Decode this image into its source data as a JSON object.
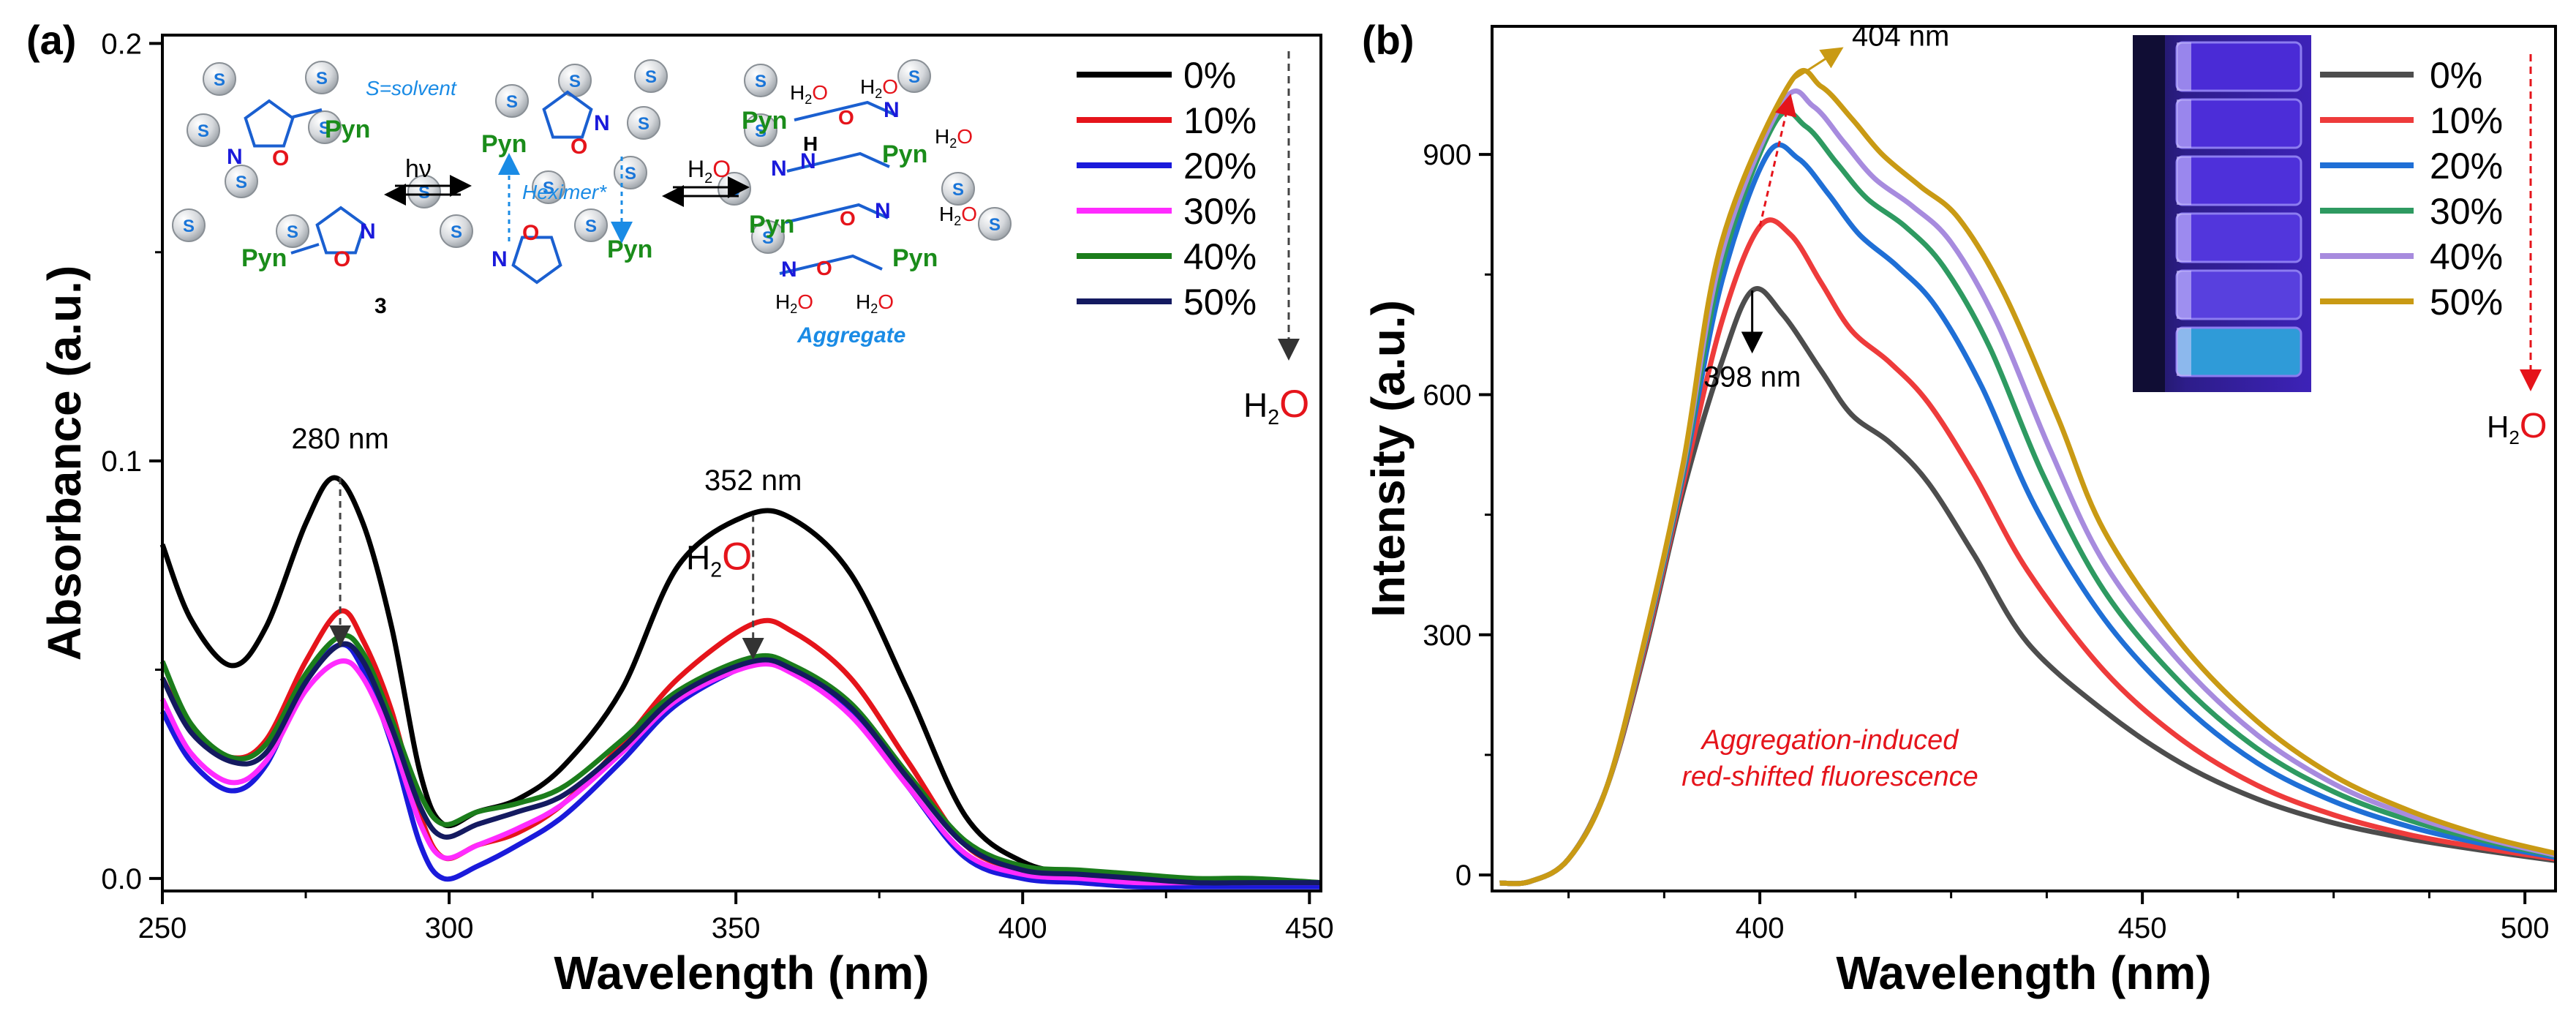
{
  "chart_data": [
    {
      "panel_label": "(a)",
      "type": "line",
      "xlabel": "Wavelength (nm)",
      "ylabel": "Absorbance (a.u.)",
      "xlim": [
        250,
        452
      ],
      "ylim": [
        -0.003,
        0.202
      ],
      "xticks": [
        250,
        300,
        350,
        400,
        450
      ],
      "yticks": [
        0.0,
        0.1,
        0.2
      ],
      "ytick_labels": [
        "0.0",
        "0.1",
        "0.2"
      ],
      "legend_title_suffix": "H2O",
      "series": [
        {
          "name": "0%",
          "color": "#000000",
          "x": [
            250,
            255,
            262,
            268,
            275,
            280,
            285,
            290,
            295,
            299,
            305,
            312,
            320,
            330,
            340,
            352,
            360,
            370,
            380,
            390,
            400,
            410,
            420,
            430,
            440,
            452
          ],
          "y": [
            0.08,
            0.062,
            0.051,
            0.06,
            0.085,
            0.096,
            0.085,
            0.06,
            0.025,
            0.013,
            0.016,
            0.019,
            0.027,
            0.045,
            0.075,
            0.087,
            0.086,
            0.073,
            0.045,
            0.015,
            0.004,
            0.001,
            0.0,
            -0.001,
            -0.001,
            -0.001
          ]
        },
        {
          "name": "10%",
          "color": "#e5141b",
          "x": [
            250,
            255,
            262,
            268,
            275,
            281,
            285,
            290,
            295,
            299,
            305,
            312,
            320,
            330,
            340,
            353,
            360,
            370,
            380,
            390,
            400,
            410,
            420,
            430,
            440,
            452
          ],
          "y": [
            0.048,
            0.036,
            0.029,
            0.033,
            0.052,
            0.064,
            0.057,
            0.04,
            0.015,
            0.005,
            0.008,
            0.011,
            0.018,
            0.032,
            0.048,
            0.061,
            0.059,
            0.048,
            0.028,
            0.008,
            0.002,
            0.0,
            -0.001,
            -0.001,
            -0.001,
            -0.002
          ]
        },
        {
          "name": "20%",
          "color": "#1a1adb",
          "x": [
            250,
            255,
            262,
            268,
            275,
            281,
            285,
            290,
            295,
            299,
            305,
            312,
            320,
            330,
            340,
            354,
            360,
            370,
            380,
            390,
            400,
            410,
            420,
            430,
            440,
            452
          ],
          "y": [
            0.04,
            0.028,
            0.021,
            0.027,
            0.047,
            0.056,
            0.05,
            0.032,
            0.008,
            0.0,
            0.003,
            0.008,
            0.015,
            0.028,
            0.042,
            0.052,
            0.05,
            0.04,
            0.022,
            0.005,
            0.0,
            -0.001,
            -0.002,
            -0.002,
            -0.002,
            -0.002
          ]
        },
        {
          "name": "30%",
          "color": "#ff2bff",
          "x": [
            250,
            255,
            262,
            268,
            275,
            281,
            285,
            290,
            295,
            299,
            305,
            312,
            320,
            330,
            340,
            353,
            360,
            370,
            380,
            390,
            400,
            410,
            420,
            430,
            440,
            452
          ],
          "y": [
            0.043,
            0.03,
            0.023,
            0.028,
            0.045,
            0.052,
            0.048,
            0.033,
            0.013,
            0.005,
            0.008,
            0.012,
            0.018,
            0.03,
            0.043,
            0.051,
            0.049,
            0.039,
            0.022,
            0.006,
            0.001,
            0.0,
            -0.001,
            -0.001,
            -0.001,
            -0.001
          ]
        },
        {
          "name": "40%",
          "color": "#1b7d1b",
          "x": [
            250,
            255,
            262,
            268,
            275,
            281,
            285,
            290,
            295,
            299,
            305,
            312,
            320,
            330,
            340,
            353,
            360,
            370,
            380,
            390,
            400,
            410,
            420,
            430,
            440,
            452
          ],
          "y": [
            0.052,
            0.037,
            0.029,
            0.032,
            0.049,
            0.058,
            0.054,
            0.038,
            0.02,
            0.013,
            0.016,
            0.018,
            0.022,
            0.033,
            0.045,
            0.053,
            0.051,
            0.042,
            0.025,
            0.009,
            0.003,
            0.002,
            0.001,
            0.0,
            0.0,
            -0.001
          ]
        },
        {
          "name": "50%",
          "color": "#141a60",
          "x": [
            250,
            255,
            262,
            268,
            275,
            281,
            285,
            290,
            295,
            299,
            305,
            312,
            320,
            330,
            340,
            353,
            360,
            370,
            380,
            390,
            400,
            410,
            420,
            430,
            440,
            452
          ],
          "y": [
            0.048,
            0.035,
            0.028,
            0.03,
            0.047,
            0.056,
            0.052,
            0.036,
            0.017,
            0.01,
            0.013,
            0.016,
            0.02,
            0.031,
            0.044,
            0.052,
            0.05,
            0.041,
            0.024,
            0.008,
            0.002,
            0.001,
            0.0,
            -0.001,
            -0.001,
            -0.001
          ]
        }
      ],
      "annotations": [
        {
          "id": "peak280",
          "text": "280 nm"
        },
        {
          "id": "peak352",
          "text": "352 nm"
        },
        {
          "id": "water",
          "text_main": "H",
          "text_sub": "2",
          "text_o": "O"
        }
      ],
      "scheme": {
        "solvent_note": "S=solvent",
        "excimer": "Hexim",
        "excimer_suffix": "er*",
        "light": "hν",
        "water_label_main": "H",
        "water_label_sub": "2",
        "water_label_o": "O",
        "aggregate": "Aggregate",
        "compound_number": "3",
        "pyn": "Pyn",
        "s": "S",
        "n": "N",
        "o": "O",
        "h": "H"
      }
    },
    {
      "panel_label": "(b)",
      "type": "line",
      "xlabel": "Wavelength (nm)",
      "ylabel": "Intensity (a.u.)",
      "xlim": [
        365,
        504
      ],
      "ylim": [
        -20,
        1060
      ],
      "xticks": [
        400,
        450,
        500
      ],
      "yticks": [
        0,
        300,
        600,
        900
      ],
      "legend_title_suffix": "H2O",
      "series": [
        {
          "name": "0%",
          "color": "#4d4d4d",
          "x": [
            366,
            370,
            375,
            380,
            385,
            390,
            395,
            399,
            403,
            408,
            412,
            417,
            422,
            428,
            435,
            445,
            455,
            465,
            475,
            485,
            495,
            504
          ],
          "y": [
            -10,
            -8,
            20,
            110,
            280,
            480,
            640,
            730,
            700,
            630,
            575,
            540,
            490,
            400,
            290,
            205,
            140,
            95,
            65,
            45,
            30,
            18
          ]
        },
        {
          "name": "10%",
          "color": "#ee3b3b",
          "x": [
            366,
            370,
            375,
            380,
            385,
            390,
            395,
            400,
            404,
            408,
            412,
            417,
            422,
            428,
            435,
            445,
            455,
            465,
            475,
            485,
            495,
            504
          ],
          "y": [
            -10,
            -8,
            20,
            110,
            285,
            490,
            690,
            810,
            800,
            740,
            680,
            640,
            590,
            500,
            380,
            255,
            170,
            112,
            75,
            50,
            33,
            20
          ]
        },
        {
          "name": "20%",
          "color": "#1f6fd6",
          "x": [
            366,
            370,
            375,
            380,
            385,
            390,
            395,
            401,
            405,
            409,
            413,
            418,
            423,
            429,
            436,
            445,
            455,
            465,
            475,
            485,
            495,
            504
          ],
          "y": [
            -10,
            -8,
            20,
            110,
            290,
            500,
            740,
            900,
            895,
            850,
            800,
            760,
            710,
            610,
            460,
            320,
            215,
            140,
            92,
            60,
            38,
            22
          ]
        },
        {
          "name": "30%",
          "color": "#2e9a61",
          "x": [
            366,
            370,
            375,
            380,
            385,
            390,
            395,
            402,
            406,
            410,
            414,
            419,
            424,
            430,
            437,
            445,
            455,
            465,
            475,
            485,
            495,
            504
          ],
          "y": [
            -10,
            -8,
            20,
            110,
            292,
            505,
            760,
            940,
            935,
            890,
            845,
            810,
            760,
            660,
            500,
            355,
            240,
            158,
            104,
            68,
            42,
            24
          ]
        },
        {
          "name": "40%",
          "color": "#a78bde",
          "x": [
            366,
            370,
            375,
            380,
            385,
            390,
            395,
            403,
            407,
            411,
            415,
            420,
            425,
            431,
            438,
            445,
            455,
            465,
            475,
            485,
            495,
            504
          ],
          "y": [
            -10,
            -8,
            20,
            110,
            294,
            510,
            775,
            965,
            960,
            915,
            870,
            835,
            790,
            690,
            530,
            390,
            265,
            175,
            114,
            74,
            45,
            25
          ]
        },
        {
          "name": "50%",
          "color": "#c99a14",
          "x": [
            366,
            370,
            375,
            380,
            385,
            390,
            395,
            404,
            408,
            412,
            416,
            421,
            426,
            432,
            439,
            445,
            455,
            465,
            475,
            485,
            495,
            504
          ],
          "y": [
            -10,
            -8,
            20,
            110,
            296,
            515,
            790,
            990,
            985,
            945,
            900,
            860,
            820,
            725,
            570,
            430,
            290,
            192,
            124,
            80,
            48,
            27
          ]
        }
      ],
      "annotations": [
        {
          "id": "peak404",
          "text": "404 nm"
        },
        {
          "id": "peak398",
          "text": "398 nm"
        },
        {
          "id": "water",
          "text_main": "H",
          "text_sub": "2",
          "text_o": "O"
        },
        {
          "id": "caption_line1",
          "text": "Aggregation-induced"
        },
        {
          "id": "caption_line2",
          "text": "red-shifted fluorescence"
        }
      ]
    }
  ]
}
